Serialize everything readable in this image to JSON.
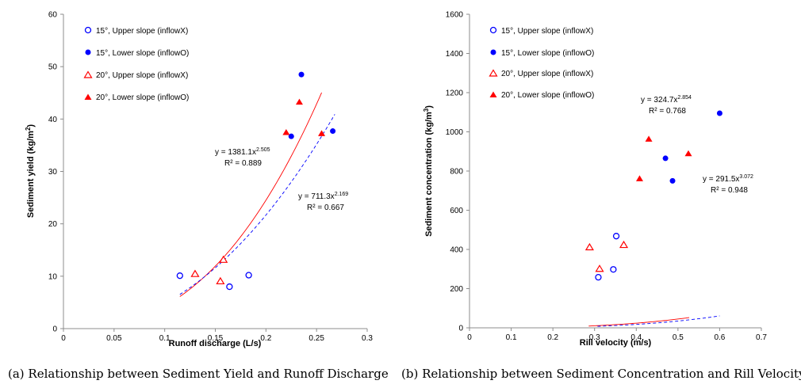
{
  "colors": {
    "blue": "#0000ff",
    "red": "#ff0000",
    "axis": "#8c8c8c"
  },
  "captions": [
    "(a) Relationship between Sediment Yield and Runoff Discharge",
    "(b) Relationship between Sediment Concentration and Rill Velocity"
  ],
  "chart_data": [
    {
      "type": "scatter",
      "title": "",
      "xlabel": "Runoff discharge (L/s)",
      "ylabel_main": "Sediment yield (kg/m",
      "ylabel_sup": "2",
      "ylabel_end": ")",
      "xlim": [
        0,
        0.3
      ],
      "ylim": [
        0,
        60
      ],
      "xticks": [
        0,
        0.05,
        0.1,
        0.15,
        0.2,
        0.25,
        0.3
      ],
      "yticks": [
        0,
        10,
        20,
        30,
        40,
        50,
        60
      ],
      "xtick_labels": [
        "0",
        "0.05",
        "0.1",
        "0.15",
        "0.2",
        "0.25",
        "0.3"
      ],
      "ytick_labels": [
        "0",
        "10",
        "20",
        "30",
        "40",
        "50",
        "60"
      ],
      "legend_position": "top-left",
      "series": [
        {
          "name": "15°, Upper slope (inflowX)",
          "marker": "circle-open",
          "color": "#0000ff",
          "points": [
            [
              0.115,
              10.1
            ],
            [
              0.164,
              8.0
            ],
            [
              0.183,
              10.2
            ]
          ]
        },
        {
          "name": "15°, Lower slope (inflowO)",
          "marker": "circle-filled",
          "color": "#0000ff",
          "points": [
            [
              0.225,
              36.7
            ],
            [
              0.235,
              48.5
            ],
            [
              0.266,
              37.7
            ]
          ]
        },
        {
          "name": "20°, Upper slope (inflowX)",
          "marker": "triangle-open",
          "color": "#ff0000",
          "points": [
            [
              0.13,
              10.4
            ],
            [
              0.155,
              9.0
            ],
            [
              0.158,
              13.1
            ]
          ]
        },
        {
          "name": "20°, Lower slope (inflowO)",
          "marker": "triangle-filled",
          "color": "#ff0000",
          "points": [
            [
              0.22,
              37.4
            ],
            [
              0.233,
              43.2
            ],
            [
              0.255,
              37.2
            ]
          ]
        }
      ],
      "trendlines": [
        {
          "coef": 1381.1,
          "exp": 2.505,
          "color": "#ff0000",
          "dashed": false,
          "x_range": [
            0.115,
            0.255
          ],
          "eq_main": "y = 1381.1x",
          "eq_sup": "2.505",
          "r2": "R² = 0.889"
        },
        {
          "coef": 711.3,
          "exp": 2.169,
          "color": "#0000ff",
          "dashed": true,
          "x_range": [
            0.115,
            0.268
          ],
          "eq_main": "y = 711.3x",
          "eq_sup": "2.169",
          "r2": "R² = 0.667"
        }
      ]
    },
    {
      "type": "scatter",
      "title": "",
      "xlabel": "Rill velocity (m/s)",
      "ylabel_main": "Sediment concentration (kg/m",
      "ylabel_sup": "3",
      "ylabel_end": ")",
      "xlim": [
        0,
        0.7
      ],
      "ylim": [
        0,
        1600
      ],
      "xticks": [
        0,
        0.1,
        0.2,
        0.3,
        0.4,
        0.5,
        0.6,
        0.7
      ],
      "yticks": [
        0,
        200,
        400,
        600,
        800,
        1000,
        1200,
        1400,
        1600
      ],
      "xtick_labels": [
        "0",
        "0.1",
        "0.2",
        "0.3",
        "0.4",
        "0.5",
        "0.6",
        "0.7"
      ],
      "ytick_labels": [
        "0",
        "200",
        "400",
        "600",
        "800",
        "1000",
        "1200",
        "1400",
        "1600"
      ],
      "legend_position": "top-left",
      "series": [
        {
          "name": "15°, Upper slope (inflowX)",
          "marker": "circle-open",
          "color": "#0000ff",
          "points": [
            [
              0.309,
              258
            ],
            [
              0.345,
              298
            ],
            [
              0.352,
              468
            ]
          ]
        },
        {
          "name": "15°, Lower slope (inflowO)",
          "marker": "circle-filled",
          "color": "#0000ff",
          "points": [
            [
              0.47,
              865
            ],
            [
              0.487,
              750
            ],
            [
              0.6,
              1095
            ]
          ]
        },
        {
          "name": "20°, Upper slope (inflowX)",
          "marker": "triangle-open",
          "color": "#ff0000",
          "points": [
            [
              0.288,
              410
            ],
            [
              0.312,
              300
            ],
            [
              0.37,
              422
            ]
          ]
        },
        {
          "name": "20°, Lower slope (inflowO)",
          "marker": "triangle-filled",
          "color": "#ff0000",
          "points": [
            [
              0.408,
              760
            ],
            [
              0.43,
              962
            ],
            [
              0.525,
              888
            ]
          ]
        }
      ],
      "trendlines": [
        {
          "coef": 324.7,
          "exp": 2.854,
          "color": "#ff0000",
          "dashed": false,
          "x_range": [
            0.286,
            0.527
          ],
          "eq_main": "y = 324.7x",
          "eq_sup": "2.854",
          "r2": "R² = 0.768"
        },
        {
          "coef": 291.5,
          "exp": 3.072,
          "color": "#0000ff",
          "dashed": true,
          "x_range": [
            0.307,
            0.6
          ],
          "eq_main": "y = 291.5x",
          "eq_sup": "3.072",
          "r2": "R² = 0.948"
        }
      ]
    }
  ]
}
